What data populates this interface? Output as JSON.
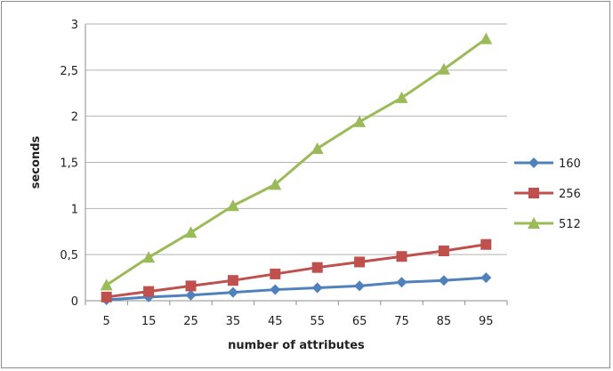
{
  "chart_data": {
    "type": "line",
    "title": "",
    "xlabel": "number of attributes",
    "ylabel": "seconds",
    "x": [
      5,
      15,
      25,
      35,
      45,
      55,
      65,
      75,
      85,
      95
    ],
    "x_tick_labels": [
      "5",
      "15",
      "25",
      "35",
      "45",
      "55",
      "65",
      "75",
      "85",
      "95"
    ],
    "ylim": [
      0,
      3
    ],
    "y_ticks": [
      0,
      0.5,
      1,
      1.5,
      2,
      2.5,
      3
    ],
    "y_tick_labels": [
      "0",
      "0,5",
      "1",
      "1,5",
      "2",
      "2,5",
      "3"
    ],
    "grid": "horizontal",
    "legend_position": "right",
    "series": [
      {
        "name": "160",
        "color": "#4f81bd",
        "marker": "diamond",
        "values": [
          0.01,
          0.04,
          0.06,
          0.09,
          0.12,
          0.14,
          0.16,
          0.2,
          0.22,
          0.25
        ]
      },
      {
        "name": "256",
        "color": "#c0504d",
        "marker": "square",
        "values": [
          0.04,
          0.1,
          0.16,
          0.22,
          0.29,
          0.36,
          0.42,
          0.48,
          0.54,
          0.61
        ]
      },
      {
        "name": "512",
        "color": "#9bbb59",
        "marker": "triangle",
        "values": [
          0.17,
          0.47,
          0.74,
          1.03,
          1.26,
          1.65,
          1.94,
          2.2,
          2.51,
          2.84
        ]
      }
    ]
  }
}
